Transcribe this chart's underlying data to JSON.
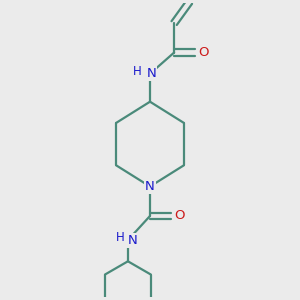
{
  "bg_color": "#ebebeb",
  "bond_color": "#4a8a7a",
  "N_color": "#1a1acc",
  "O_color": "#cc1a1a",
  "line_width": 1.6,
  "font_size_atom": 9.5,
  "fig_w": 3.0,
  "fig_h": 3.0,
  "dpi": 100,
  "xlim": [
    0,
    10
  ],
  "ylim": [
    0,
    10
  ]
}
